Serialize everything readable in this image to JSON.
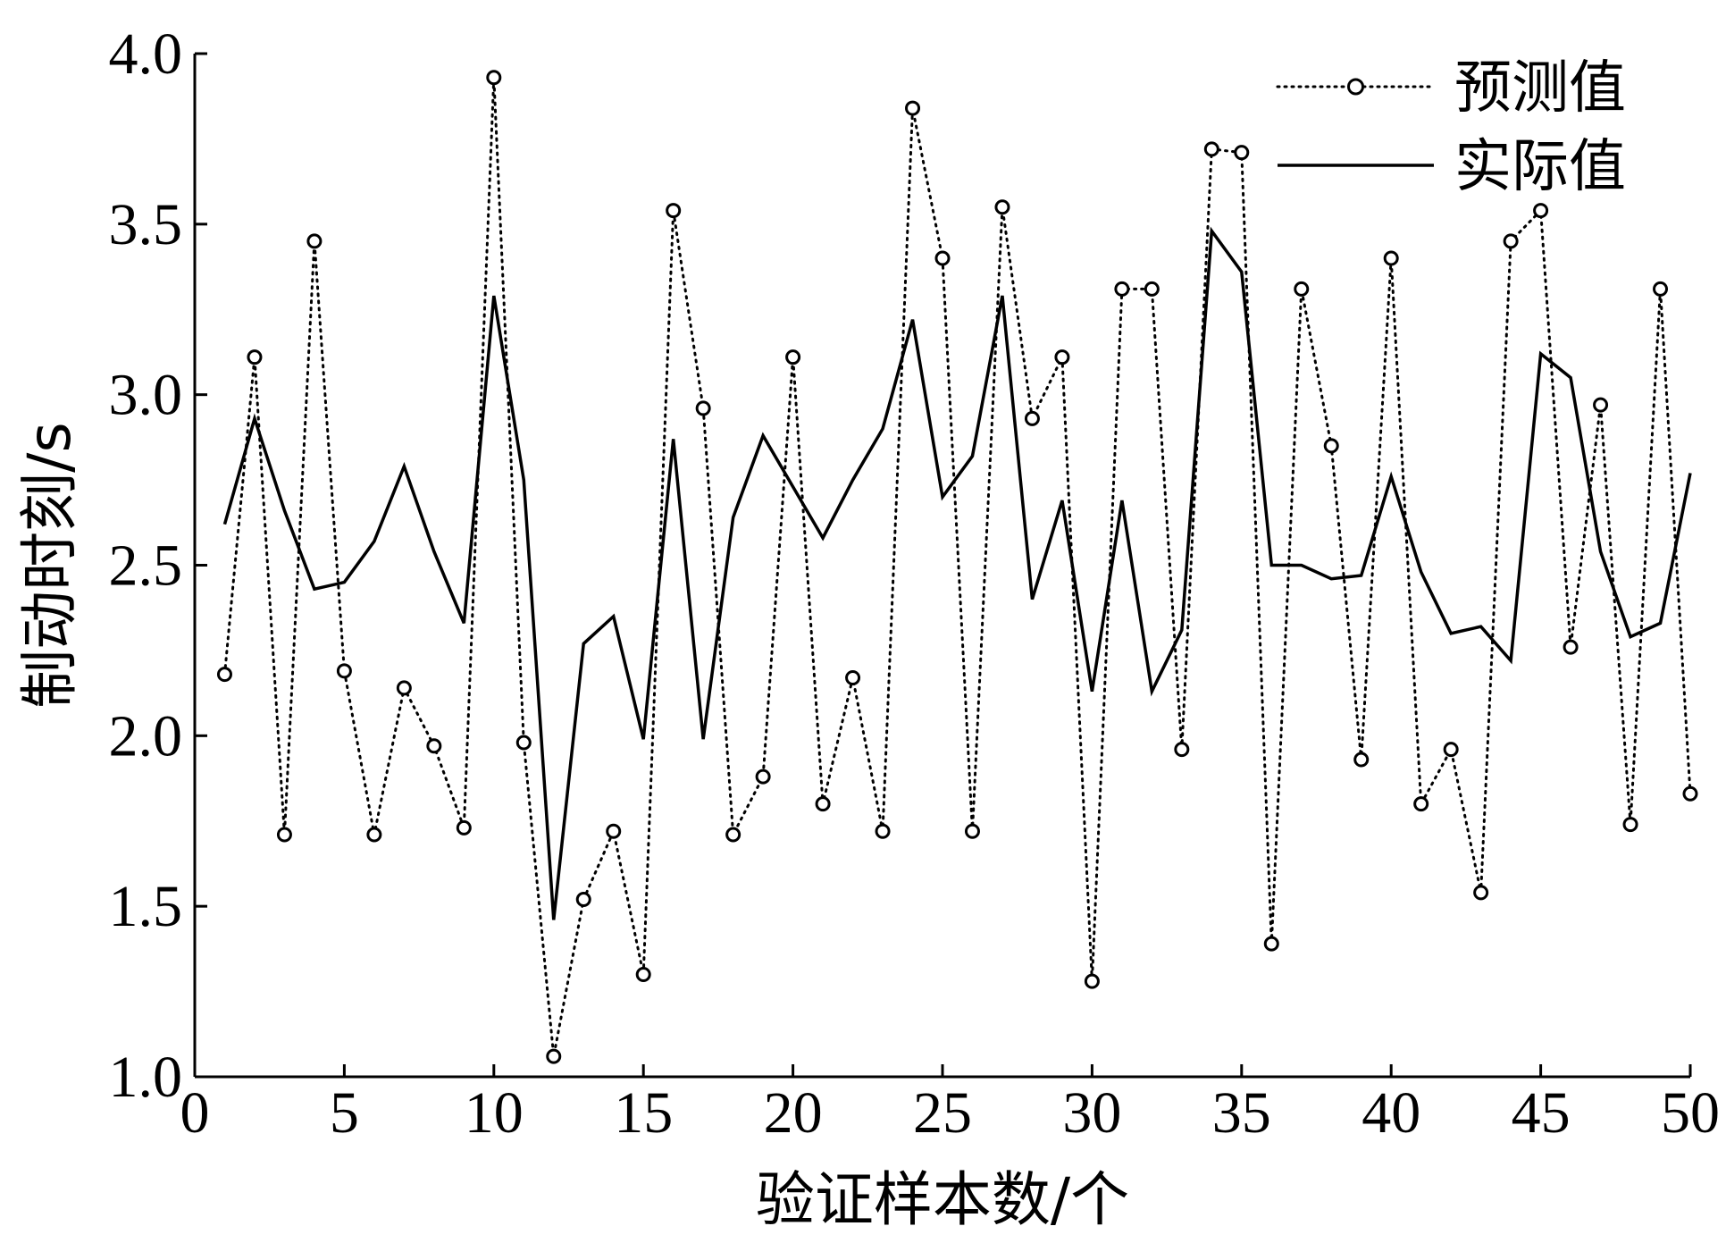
{
  "chart_data": {
    "type": "line",
    "title": "",
    "xlabel": "验证样本数/个",
    "ylabel": "制动时刻/s",
    "xlim": [
      0,
      50
    ],
    "ylim": [
      1.0,
      4.0
    ],
    "xticks": [
      "0",
      "5",
      "10",
      "15",
      "20",
      "25",
      "30",
      "35",
      "40",
      "45",
      "50"
    ],
    "yticks": [
      "1.0",
      "1.5",
      "2.0",
      "2.5",
      "3.0",
      "3.5",
      "4.0"
    ],
    "grid": false,
    "legend_position": "top-right",
    "x": [
      1,
      2,
      3,
      4,
      5,
      6,
      7,
      8,
      9,
      10,
      11,
      12,
      13,
      14,
      15,
      16,
      17,
      18,
      19,
      20,
      21,
      22,
      23,
      24,
      25,
      26,
      27,
      28,
      29,
      30,
      31,
      32,
      33,
      34,
      35,
      36,
      37,
      38,
      39,
      40,
      41,
      42,
      43,
      44,
      45,
      46,
      47,
      48,
      49,
      50
    ],
    "series": [
      {
        "name": "预测值",
        "style": "dotted-circle",
        "values": [
          2.18,
          3.11,
          1.71,
          3.45,
          2.19,
          1.71,
          2.14,
          1.97,
          1.73,
          3.93,
          1.98,
          1.06,
          1.52,
          1.72,
          1.3,
          3.54,
          2.96,
          1.71,
          1.88,
          3.11,
          1.8,
          2.17,
          1.72,
          3.84,
          3.4,
          1.72,
          3.55,
          2.93,
          3.11,
          1.28,
          3.31,
          3.31,
          1.96,
          3.72,
          3.71,
          1.39,
          3.31,
          2.85,
          1.93,
          3.4,
          1.8,
          1.96,
          1.54,
          3.45,
          3.54,
          2.26,
          2.97,
          1.74,
          3.31,
          1.83
        ]
      },
      {
        "name": "实际值",
        "style": "solid",
        "values": [
          2.62,
          2.93,
          2.66,
          2.43,
          2.45,
          2.57,
          2.79,
          2.54,
          2.33,
          3.29,
          2.75,
          1.46,
          2.27,
          2.35,
          1.99,
          2.87,
          1.99,
          2.64,
          2.88,
          2.73,
          2.58,
          2.75,
          2.9,
          3.22,
          2.7,
          2.82,
          3.29,
          2.4,
          2.69,
          2.13,
          2.69,
          2.13,
          2.31,
          3.48,
          3.36,
          2.5,
          2.5,
          2.46,
          2.47,
          2.76,
          2.48,
          2.3,
          2.32,
          2.22,
          3.12,
          3.05,
          2.54,
          2.29,
          2.33,
          2.77
        ]
      }
    ]
  }
}
